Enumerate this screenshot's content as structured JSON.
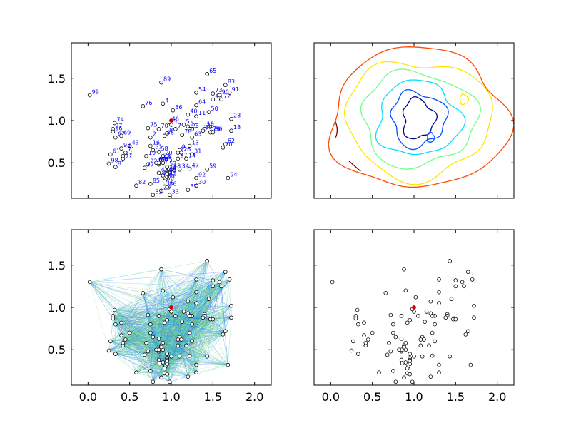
{
  "chart_data": [
    {
      "panel": "top-left",
      "type": "scatter",
      "title": "",
      "xlabel": "",
      "ylabel": "",
      "xlim": [
        -0.2,
        2.2
      ],
      "ylim": [
        0.08,
        1.92
      ],
      "xticks": [],
      "yticks": [
        "0.5",
        "1.0",
        "1.5"
      ],
      "point_labels": true,
      "label_color": "#0000ff",
      "highlight": {
        "x": 1.0,
        "y": 1.0,
        "color": "#cc0000"
      }
    },
    {
      "panel": "top-right",
      "type": "contour",
      "title": "",
      "xlabel": "",
      "ylabel": "",
      "xlim": [
        -0.2,
        2.2
      ],
      "ylim": [
        0.08,
        1.92
      ],
      "xticks": [],
      "yticks": [],
      "colormap": "jet",
      "levels": [
        {
          "color": "#00008f",
          "value": 1
        },
        {
          "color": "#0050ff",
          "value": 2
        },
        {
          "color": "#00dfff",
          "value": 3
        },
        {
          "color": "#70ff87",
          "value": 4
        },
        {
          "color": "#ffe600",
          "value": 5
        },
        {
          "color": "#ff4a00",
          "value": 6
        },
        {
          "color": "#800000",
          "value": 7
        }
      ]
    },
    {
      "panel": "bottom-left",
      "type": "network",
      "title": "",
      "xlabel": "",
      "ylabel": "",
      "xlim": [
        -0.2,
        2.2
      ],
      "ylim": [
        0.08,
        1.92
      ],
      "xticks": [
        "0.0",
        "0.5",
        "1.0",
        "1.5",
        "2.0"
      ],
      "yticks": [
        "0.5",
        "1.0",
        "1.5"
      ],
      "edge_colors": [
        "#1f5fdf",
        "#3fb0ff",
        "#3fd0a0",
        "#a0e060"
      ],
      "highlight": {
        "x": 1.0,
        "y": 1.0,
        "color": "#cc0000"
      }
    },
    {
      "panel": "bottom-right",
      "type": "scatter",
      "title": "",
      "xlabel": "",
      "ylabel": "",
      "xlim": [
        -0.2,
        2.2
      ],
      "ylim": [
        0.08,
        1.92
      ],
      "xticks": [
        "0.0",
        "0.5",
        "1.0",
        "1.5",
        "2.0"
      ],
      "yticks": [],
      "highlight": {
        "x": 1.0,
        "y": 1.0,
        "color": "#cc0000"
      }
    }
  ],
  "points": [
    {
      "id": "1",
      "x": 1.25,
      "y": 0.9
    },
    {
      "id": "2",
      "x": 0.75,
      "y": 0.8
    },
    {
      "id": "3",
      "x": 1.0,
      "y": 0.95
    },
    {
      "id": "4",
      "x": 0.9,
      "y": 1.2
    },
    {
      "id": "5",
      "x": 1.15,
      "y": 0.95
    },
    {
      "id": "6",
      "x": 1.2,
      "y": 0.93
    },
    {
      "id": "7",
      "x": 1.05,
      "y": 0.9
    },
    {
      "id": "8",
      "x": 0.95,
      "y": 0.85
    },
    {
      "id": "9",
      "x": 1.1,
      "y": 0.65
    },
    {
      "id": "10",
      "x": 1.4,
      "y": 0.92
    },
    {
      "id": "11",
      "x": 1.3,
      "y": 1.05
    },
    {
      "id": "12",
      "x": 1.08,
      "y": 0.62
    },
    {
      "id": "13",
      "x": 1.22,
      "y": 0.7
    },
    {
      "id": "14",
      "x": 1.18,
      "y": 0.55
    },
    {
      "id": "15",
      "x": 0.92,
      "y": 0.22
    },
    {
      "id": "16",
      "x": 0.75,
      "y": 0.7
    },
    {
      "id": "17",
      "x": 0.85,
      "y": 0.48
    },
    {
      "id": "18",
      "x": 1.72,
      "y": 0.88
    },
    {
      "id": "19",
      "x": 0.7,
      "y": 0.58
    },
    {
      "id": "20",
      "x": 0.9,
      "y": 0.58
    },
    {
      "id": "21",
      "x": 0.88,
      "y": 0.55
    },
    {
      "id": "22",
      "x": 0.72,
      "y": 0.48
    },
    {
      "id": "23",
      "x": 1.22,
      "y": 0.9
    },
    {
      "id": "24",
      "x": 0.95,
      "y": 0.4
    },
    {
      "id": "25",
      "x": 1.48,
      "y": 0.87
    },
    {
      "id": "26",
      "x": 1.12,
      "y": 0.62
    },
    {
      "id": "27",
      "x": 0.3,
      "y": 0.9
    },
    {
      "id": "28",
      "x": 1.72,
      "y": 1.02
    },
    {
      "id": "29",
      "x": 0.88,
      "y": 0.17
    },
    {
      "id": "30",
      "x": 1.3,
      "y": 0.23
    },
    {
      "id": "31",
      "x": 1.25,
      "y": 0.6
    },
    {
      "id": "32",
      "x": 0.78,
      "y": 0.12
    },
    {
      "id": "33",
      "x": 0.98,
      "y": 0.12
    },
    {
      "id": "34",
      "x": 1.1,
      "y": 0.42
    },
    {
      "id": "35",
      "x": 0.9,
      "y": 0.35
    },
    {
      "id": "36",
      "x": 1.02,
      "y": 1.12
    },
    {
      "id": "37",
      "x": 1.2,
      "y": 0.18
    },
    {
      "id": "38",
      "x": 1.4,
      "y": 0.9
    },
    {
      "id": "39",
      "x": 1.38,
      "y": 0.88
    },
    {
      "id": "40",
      "x": 1.2,
      "y": 1.07
    },
    {
      "id": "41",
      "x": 0.95,
      "y": 0.33
    },
    {
      "id": "42",
      "x": 0.85,
      "y": 0.38
    },
    {
      "id": "43",
      "x": 0.5,
      "y": 0.7
    },
    {
      "id": "44",
      "x": 1.5,
      "y": 1.25
    },
    {
      "id": "45",
      "x": 0.9,
      "y": 0.5
    },
    {
      "id": "46",
      "x": 0.98,
      "y": 0.98
    },
    {
      "id": "47",
      "x": 1.22,
      "y": 0.43
    },
    {
      "id": "48",
      "x": 1.0,
      "y": 0.42
    },
    {
      "id": "49",
      "x": 0.88,
      "y": 0.53
    },
    {
      "id": "50",
      "x": 1.45,
      "y": 1.1
    },
    {
      "id": "51",
      "x": 0.78,
      "y": 0.65
    },
    {
      "id": "52",
      "x": 0.95,
      "y": 0.45
    },
    {
      "id": "53",
      "x": 0.93,
      "y": 0.3
    },
    {
      "id": "54",
      "x": 1.3,
      "y": 1.33
    },
    {
      "id": "55",
      "x": 0.95,
      "y": 0.38
    },
    {
      "id": "56",
      "x": 0.92,
      "y": 0.28
    },
    {
      "id": "57",
      "x": 0.42,
      "y": 0.55
    },
    {
      "id": "58",
      "x": 0.85,
      "y": 0.63
    },
    {
      "id": "59",
      "x": 1.43,
      "y": 0.42
    },
    {
      "id": "60",
      "x": 1.62,
      "y": 0.68
    },
    {
      "id": "61",
      "x": 0.27,
      "y": 0.6
    },
    {
      "id": "62",
      "x": 1.65,
      "y": 0.72
    },
    {
      "id": "63",
      "x": 1.25,
      "y": 0.8
    },
    {
      "id": "64",
      "x": 1.3,
      "y": 1.18
    },
    {
      "id": "65",
      "x": 1.43,
      "y": 1.55
    },
    {
      "id": "66",
      "x": 0.85,
      "y": 0.5
    },
    {
      "id": "67",
      "x": 0.33,
      "y": 0.8
    },
    {
      "id": "68",
      "x": 0.82,
      "y": 0.5
    },
    {
      "id": "69",
      "x": 0.4,
      "y": 0.82
    },
    {
      "id": "70",
      "x": 0.85,
      "y": 0.9
    },
    {
      "id": "71",
      "x": 0.45,
      "y": 0.62
    },
    {
      "id": "72",
      "x": 1.6,
      "y": 1.25
    },
    {
      "id": "73",
      "x": 1.5,
      "y": 1.32
    },
    {
      "id": "74",
      "x": 0.32,
      "y": 0.97
    },
    {
      "id": "75",
      "x": 0.72,
      "y": 0.91
    },
    {
      "id": "76",
      "x": 0.66,
      "y": 1.17
    },
    {
      "id": "77",
      "x": 0.68,
      "y": 0.44
    },
    {
      "id": "78",
      "x": 1.13,
      "y": 0.83
    },
    {
      "id": "79",
      "x": 1.47,
      "y": 0.86
    },
    {
      "id": "80",
      "x": 1.5,
      "y": 0.86
    },
    {
      "id": "81",
      "x": 0.33,
      "y": 0.45
    },
    {
      "id": "82",
      "x": 0.58,
      "y": 0.23
    },
    {
      "id": "83",
      "x": 1.65,
      "y": 1.42
    },
    {
      "id": "84",
      "x": 0.86,
      "y": 0.34
    },
    {
      "id": "85",
      "x": 0.75,
      "y": 0.25
    },
    {
      "id": "86",
      "x": 0.95,
      "y": 0.21
    },
    {
      "id": "87",
      "x": 1.08,
      "y": 0.55
    },
    {
      "id": "88",
      "x": 0.92,
      "y": 0.82
    },
    {
      "id": "89",
      "x": 0.88,
      "y": 1.45
    },
    {
      "id": "90",
      "x": 1.58,
      "y": 1.3
    },
    {
      "id": "91",
      "x": 1.7,
      "y": 1.33
    },
    {
      "id": "92",
      "x": 1.3,
      "y": 0.32
    },
    {
      "id": "93",
      "x": 0.4,
      "y": 0.67
    },
    {
      "id": "94",
      "x": 1.68,
      "y": 0.32
    },
    {
      "id": "95",
      "x": 0.95,
      "y": 0.37
    },
    {
      "id": "96",
      "x": 0.3,
      "y": 0.87
    },
    {
      "id": "97",
      "x": 0.42,
      "y": 0.58
    },
    {
      "id": "98",
      "x": 0.25,
      "y": 0.49
    },
    {
      "id": "99",
      "x": 0.02,
      "y": 1.3
    }
  ]
}
